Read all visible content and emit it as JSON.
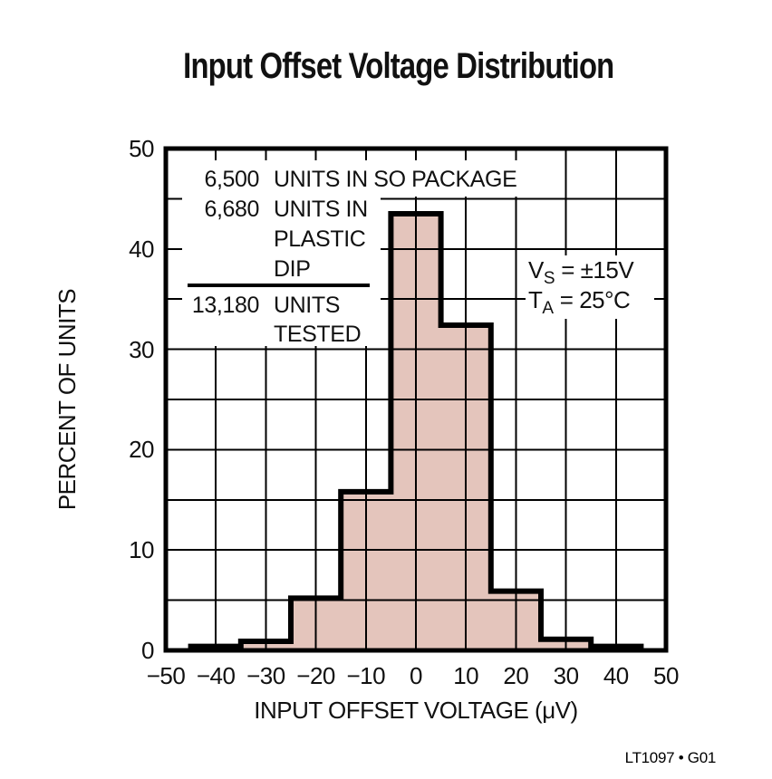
{
  "title": "Input Offset Voltage Distribution",
  "chart_data": {
    "type": "bar",
    "title": "Input Offset Voltage Distribution",
    "xlabel": "INPUT OFFSET VOLTAGE (μV)",
    "ylabel": "PERCENT OF UNITS",
    "xlim": [
      -50,
      50
    ],
    "ylim": [
      0,
      50
    ],
    "grid": "on",
    "grid_step_x": 10,
    "grid_step_y": 5,
    "x_ticks": [
      -50,
      -40,
      -30,
      -20,
      -10,
      0,
      10,
      20,
      30,
      40,
      50
    ],
    "x_tick_labels": [
      "−50",
      "−40",
      "−30",
      "−20",
      "−10",
      "0",
      "10",
      "20",
      "30",
      "40",
      "50"
    ],
    "y_ticks": [
      0,
      10,
      20,
      30,
      40,
      50
    ],
    "y_tick_labels": [
      "0",
      "10",
      "20",
      "30",
      "40",
      "50"
    ],
    "bin_width": 10,
    "bin_centers": [
      -40,
      -30,
      -20,
      -10,
      0,
      10,
      20,
      30,
      40
    ],
    "values": [
      0.4,
      0.9,
      5.2,
      15.8,
      43.5,
      32.4,
      5.9,
      1.1,
      0.4
    ],
    "colors": {
      "bar_fill": "#e4c5bc",
      "line": "#000000",
      "grid": "#000000"
    },
    "annotations": {
      "stats_lines": [
        {
          "num": "6,500",
          "text": "UNITS IN SO PACKAGE"
        },
        {
          "num": "6,680",
          "text": "UNITS IN"
        },
        {
          "num": "",
          "text": "PLASTIC"
        },
        {
          "num": "",
          "text": "DIP"
        },
        {
          "num": "13,180",
          "text": "UNITS"
        },
        {
          "num": "",
          "text": "TESTED"
        }
      ],
      "conditions": [
        {
          "base": "V",
          "sub": "S",
          "rest": " = ±15V"
        },
        {
          "base": "T",
          "sub": "A",
          "rest": " = 25°C"
        }
      ]
    }
  },
  "footer": {
    "part_code": "LT1097 • G01"
  }
}
